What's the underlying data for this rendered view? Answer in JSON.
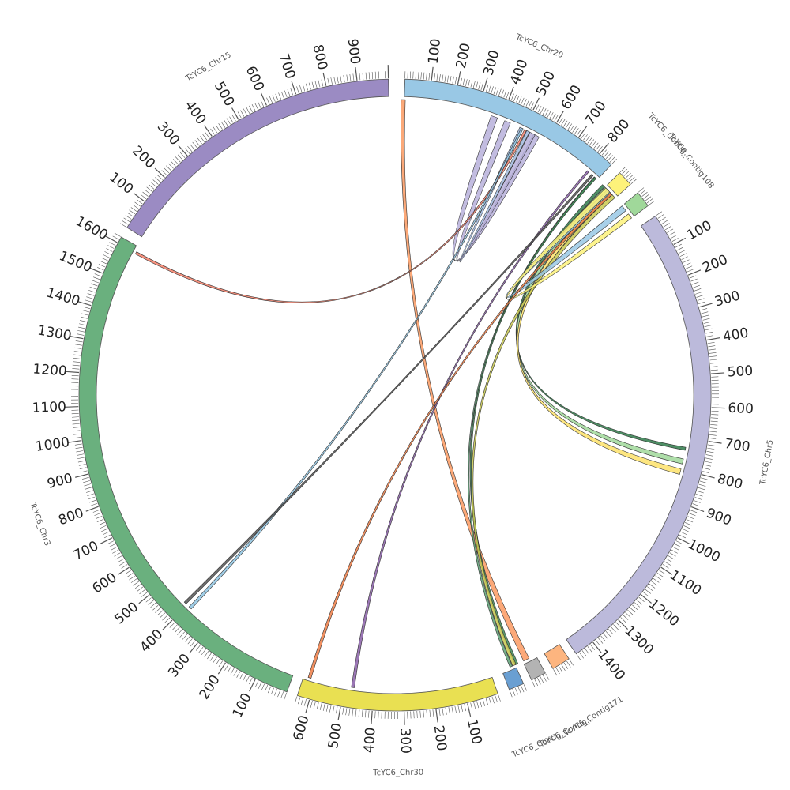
{
  "chromosomes": [
    {
      "id": "chr20",
      "label": "TcYC6_Chr20",
      "start_deg": 1.8,
      "end_deg": 43.2,
      "length": 860,
      "color": "#99c8e5",
      "tick_labels": [
        "100",
        "200",
        "300",
        "400",
        "500",
        "600",
        "700",
        "800"
      ],
      "tick_values": [
        100,
        200,
        300,
        400,
        500,
        600,
        700,
        800
      ]
    },
    {
      "id": "contig_a",
      "label": "TcYC6_Contig...",
      "start_deg": 45.3,
      "end_deg": 48.2,
      "length": 60,
      "color": "#fdf27a",
      "tick_labels": [],
      "tick_values": []
    },
    {
      "id": "contig108",
      "label": "TcYC6_Contig108",
      "start_deg": 50.2,
      "end_deg": 53.2,
      "length": 60,
      "color": "#a0d89a",
      "tick_labels": [],
      "tick_values": []
    },
    {
      "id": "chr5",
      "label": "TcYC6_Chr5",
      "start_deg": 55.5,
      "end_deg": 145.0,
      "length": 1460,
      "color": "#bcbadb",
      "tick_labels": [
        "100",
        "200",
        "300",
        "400",
        "500",
        "600",
        "700",
        "800",
        "900",
        "1000",
        "1100",
        "1200",
        "1300",
        "1400"
      ],
      "tick_values": [
        100,
        200,
        300,
        400,
        500,
        600,
        700,
        800,
        900,
        1000,
        1100,
        1200,
        1300,
        1400
      ]
    },
    {
      "id": "contig171",
      "label": "TcYC6_Contig171",
      "start_deg": 146.6,
      "end_deg": 150.0,
      "length": 60,
      "color": "#fdb57f",
      "tick_labels": [],
      "tick_values": []
    },
    {
      "id": "contig_b",
      "label": "TcYC6_Contig...",
      "start_deg": 151.6,
      "end_deg": 154.4,
      "length": 50,
      "color": "#b3b3b3",
      "tick_labels": [],
      "tick_values": []
    },
    {
      "id": "contig_c",
      "label": "TcYC6_Contig...",
      "start_deg": 156.0,
      "end_deg": 158.8,
      "length": 50,
      "color": "#6a9fd2",
      "tick_labels": [],
      "tick_values": []
    },
    {
      "id": "chr30",
      "label": "TcYC6_Chr30",
      "start_deg": 161.0,
      "end_deg": 198.0,
      "length": 640,
      "color": "#e9e052",
      "tick_labels": [
        "100",
        "200",
        "300",
        "400",
        "500",
        "600"
      ],
      "tick_values": [
        100,
        200,
        300,
        400,
        500,
        600
      ]
    },
    {
      "id": "chr3",
      "label": "TcYC6_Chr3",
      "start_deg": 200.0,
      "end_deg": 300.0,
      "length": 1620,
      "color": "#6ab07e",
      "tick_labels": [
        "100",
        "200",
        "300",
        "400",
        "500",
        "600",
        "700",
        "800",
        "900",
        "1000",
        "1100",
        "1200",
        "1300",
        "1400",
        "1500",
        "1600"
      ],
      "tick_values": [
        100,
        200,
        300,
        400,
        500,
        600,
        700,
        800,
        900,
        1000,
        1100,
        1200,
        1300,
        1400,
        1500,
        1600
      ]
    },
    {
      "id": "chr15",
      "label": "TcYC6_Chr15",
      "start_deg": 302.0,
      "end_deg": 358.8,
      "length": 1000,
      "color": "#9b8bc3",
      "tick_labels": [
        "100",
        "200",
        "300",
        "400",
        "500",
        "600",
        "700",
        "800",
        "900"
      ],
      "tick_values": [
        100,
        200,
        300,
        400,
        500,
        600,
        700,
        800,
        900
      ]
    }
  ],
  "links": [
    {
      "a": [
        1.2,
        2.0
      ],
      "b": [
        153.0,
        154.2
      ],
      "color": "#fb9a62"
    },
    {
      "a": [
        19.0,
        20.3
      ],
      "b": [
        28.0,
        29.2
      ],
      "color": "#b7b0da"
    },
    {
      "a": [
        21.8,
        23.0
      ],
      "b": [
        27.2,
        28.3
      ],
      "color": "#b7b0da"
    },
    {
      "a": [
        25.0,
        25.6
      ],
      "b": [
        26.5,
        27.1
      ],
      "color": "#9fb9dd"
    },
    {
      "a": [
        26.0,
        26.4
      ],
      "b": [
        298.5,
        299.0
      ],
      "color": "#f47f68"
    },
    {
      "a": [
        25.3,
        25.7
      ],
      "b": [
        223.6,
        224.2
      ],
      "color": "#8fc4e2"
    },
    {
      "a": [
        40.6,
        41.0
      ],
      "b": [
        187.9,
        188.5
      ],
      "color": "#8a5fa8"
    },
    {
      "a": [
        41.7,
        42.1
      ],
      "b": [
        225.0,
        225.5
      ],
      "color": "#555555"
    },
    {
      "a": [
        42.4,
        42.8
      ],
      "b": [
        156.6,
        157.1
      ],
      "color": "#5aa074"
    },
    {
      "a": [
        42.5,
        42.9
      ],
      "b": [
        155.4,
        156.0
      ],
      "color": "#3d8a55"
    },
    {
      "a": [
        44.6,
        45.2
      ],
      "b": [
        100.2,
        100.8
      ],
      "color": "#2f7a4a"
    },
    {
      "a": [
        45.3,
        46.2
      ],
      "b": [
        102.5,
        103.5
      ],
      "color": "#a0d89a"
    },
    {
      "a": [
        46.3,
        47.2
      ],
      "b": [
        104.5,
        105.6
      ],
      "color": "#fde26a"
    },
    {
      "a": [
        47.3,
        48.1
      ],
      "b": [
        155.8,
        156.5
      ],
      "color": "#c8c84f"
    },
    {
      "a": [
        50.2,
        51.4
      ],
      "b": [
        46.0,
        47.0
      ],
      "color": "#99c8e5"
    },
    {
      "a": [
        52.2,
        53.2
      ],
      "b": [
        45.5,
        46.6
      ],
      "color": "#fdf27a"
    },
    {
      "a": [
        46.8,
        47.3
      ],
      "b": [
        196.5,
        197.1
      ],
      "color": "#ee7d45"
    }
  ]
}
